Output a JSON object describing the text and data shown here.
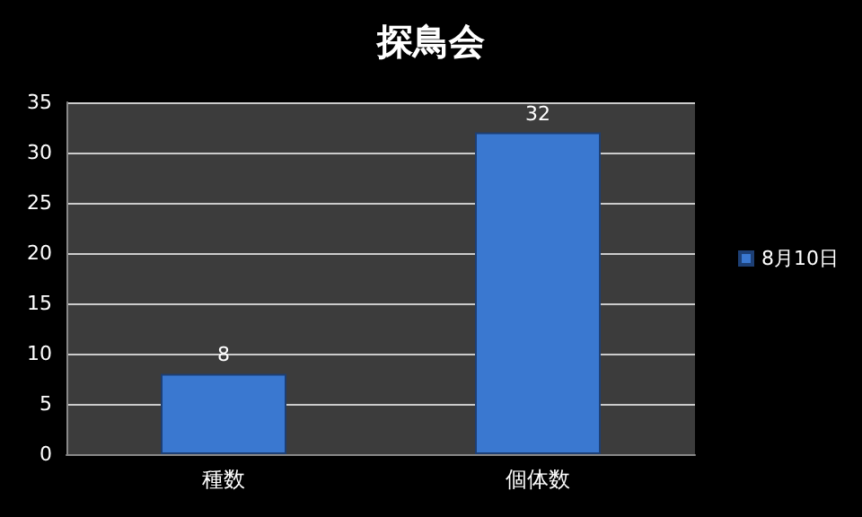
{
  "chart_data": {
    "type": "bar",
    "title": "探鳥会",
    "categories": [
      "種数",
      "個体数"
    ],
    "series": [
      {
        "name": "8月10日",
        "color": "#3a78d0",
        "values": [
          8,
          32
        ]
      }
    ],
    "ylim": [
      0,
      35
    ],
    "yticks": [
      0,
      5,
      10,
      15,
      20,
      25,
      30,
      35
    ],
    "grid": "y",
    "legend": "right",
    "data_labels": true
  }
}
